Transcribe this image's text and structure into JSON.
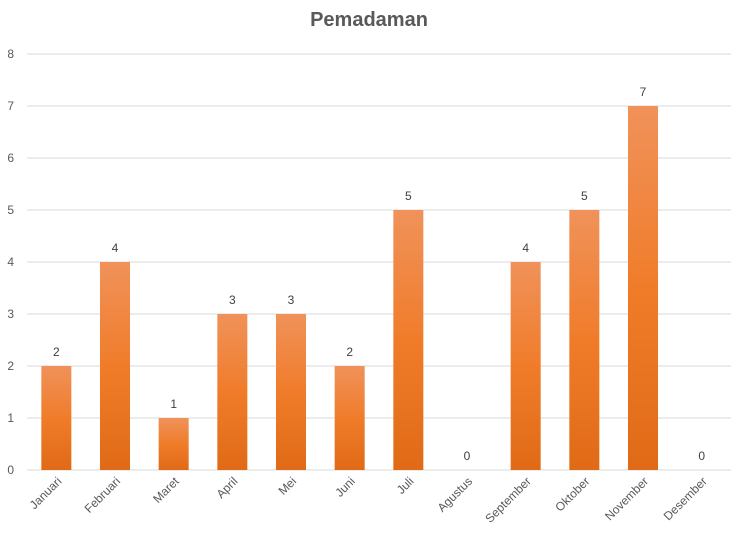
{
  "chart_data": {
    "type": "bar",
    "title": "Pemadaman",
    "xlabel": "",
    "ylabel": "",
    "categories": [
      "Januari",
      "Februari",
      "Maret",
      "April",
      "Mei",
      "Juni",
      "Juli",
      "Agustus",
      "September",
      "Oktober",
      "November",
      "Desember"
    ],
    "values": [
      2,
      4,
      1,
      3,
      3,
      2,
      5,
      0,
      4,
      5,
      7,
      0
    ],
    "ylim": [
      0,
      8
    ],
    "yticks": [
      0,
      1,
      2,
      3,
      4,
      5,
      6,
      7,
      8
    ],
    "grid": true,
    "legend": "none",
    "data_labels": true,
    "colors": {
      "bar_top": "#f0925a",
      "bar_mid": "#f07c2a",
      "bar_bottom": "#e06a16"
    }
  }
}
